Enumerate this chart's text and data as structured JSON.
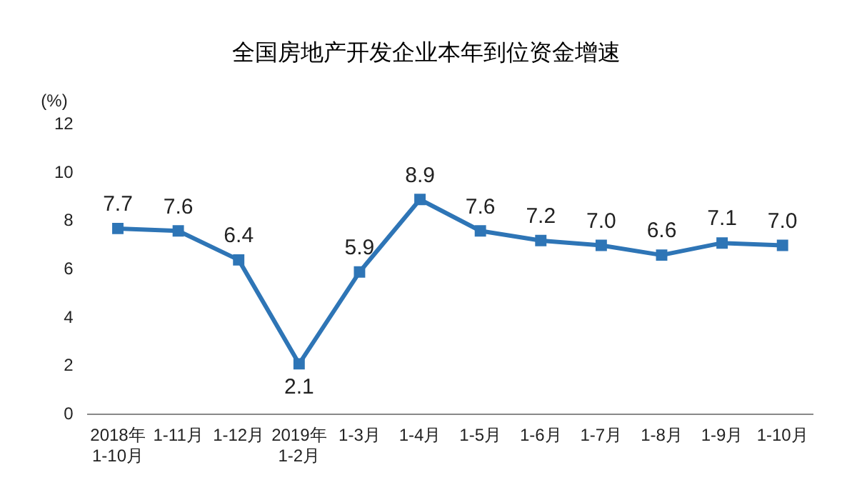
{
  "chart_data": {
    "type": "line",
    "title": "全国房地产开发企业本年到位资金增速",
    "ylabel": "(%)",
    "categories": [
      "2018年\n1-10月",
      "1-11月",
      "1-12月",
      "2019年\n1-2月",
      "1-3月",
      "1-4月",
      "1-5月",
      "1-6月",
      "1-7月",
      "1-8月",
      "1-9月",
      "1-10月"
    ],
    "series": [
      {
        "color": "#2e75b6",
        "values": [
          7.7,
          7.6,
          6.4,
          2.1,
          5.9,
          8.9,
          7.6,
          7.2,
          7.0,
          6.6,
          7.1,
          7.0
        ]
      }
    ],
    "ylim": [
      0,
      12
    ],
    "yticks": [
      0,
      2,
      4,
      6,
      8,
      10,
      12
    ],
    "value_labels": [
      "7.7",
      "7.6",
      "6.4",
      "2.1",
      "5.9",
      "8.9",
      "7.6",
      "7.2",
      "7.0",
      "6.6",
      "7.1",
      "7.0"
    ],
    "grid": false,
    "legend": false,
    "marker": "square",
    "line_style": "solid"
  }
}
